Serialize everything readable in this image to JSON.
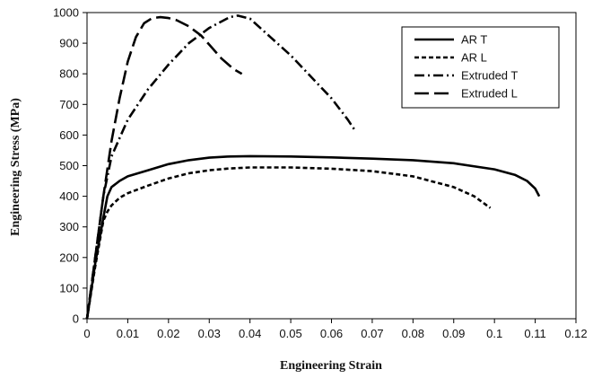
{
  "chart_data": {
    "type": "line",
    "xlabel": "Engineering Strain",
    "ylabel": "Engineering Stress (MPa)",
    "xlim": [
      0,
      0.12
    ],
    "ylim": [
      0,
      1000
    ],
    "x_ticks": [
      "0",
      "0.01",
      "0.02",
      "0.03",
      "0.04",
      "0.05",
      "0.06",
      "0.07",
      "0.08",
      "0.09",
      "0.1",
      "0.11",
      "0.12"
    ],
    "y_ticks": [
      "0",
      "100",
      "200",
      "300",
      "400",
      "500",
      "600",
      "700",
      "800",
      "900",
      "1000"
    ],
    "grid": false,
    "legend_position": "top-right",
    "series": [
      {
        "name": "AR T",
        "style": "solid",
        "x": [
          0,
          0.002,
          0.004,
          0.005,
          0.006,
          0.008,
          0.01,
          0.015,
          0.02,
          0.025,
          0.03,
          0.035,
          0.04,
          0.05,
          0.06,
          0.07,
          0.08,
          0.09,
          0.1,
          0.105,
          0.108,
          0.11,
          0.111
        ],
        "y": [
          0,
          180,
          330,
          400,
          430,
          450,
          465,
          485,
          505,
          518,
          526,
          530,
          531,
          530,
          527,
          523,
          518,
          508,
          488,
          470,
          450,
          425,
          400
        ]
      },
      {
        "name": "AR L",
        "style": "dashed",
        "x": [
          0,
          0.002,
          0.004,
          0.005,
          0.006,
          0.008,
          0.01,
          0.015,
          0.02,
          0.025,
          0.03,
          0.035,
          0.04,
          0.05,
          0.06,
          0.07,
          0.08,
          0.09,
          0.095,
          0.099
        ],
        "y": [
          0,
          170,
          320,
          350,
          370,
          395,
          410,
          435,
          458,
          475,
          485,
          491,
          494,
          494,
          490,
          482,
          465,
          430,
          400,
          362
        ]
      },
      {
        "name": "Extruded T",
        "style": "dash-dot",
        "x": [
          0,
          0.002,
          0.004,
          0.006,
          0.008,
          0.01,
          0.015,
          0.02,
          0.025,
          0.03,
          0.035,
          0.037,
          0.04,
          0.045,
          0.05,
          0.055,
          0.06,
          0.064,
          0.066
        ],
        "y": [
          0,
          200,
          400,
          530,
          590,
          650,
          750,
          830,
          900,
          950,
          985,
          990,
          980,
          920,
          860,
          790,
          720,
          650,
          610
        ]
      },
      {
        "name": "Extruded L",
        "style": "long-dash",
        "x": [
          0,
          0.002,
          0.004,
          0.006,
          0.008,
          0.01,
          0.012,
          0.014,
          0.016,
          0.018,
          0.02,
          0.022,
          0.025,
          0.028,
          0.03,
          0.033,
          0.036,
          0.038
        ],
        "y": [
          0,
          200,
          400,
          580,
          720,
          840,
          920,
          965,
          982,
          985,
          982,
          975,
          955,
          925,
          895,
          850,
          815,
          800
        ]
      }
    ]
  }
}
